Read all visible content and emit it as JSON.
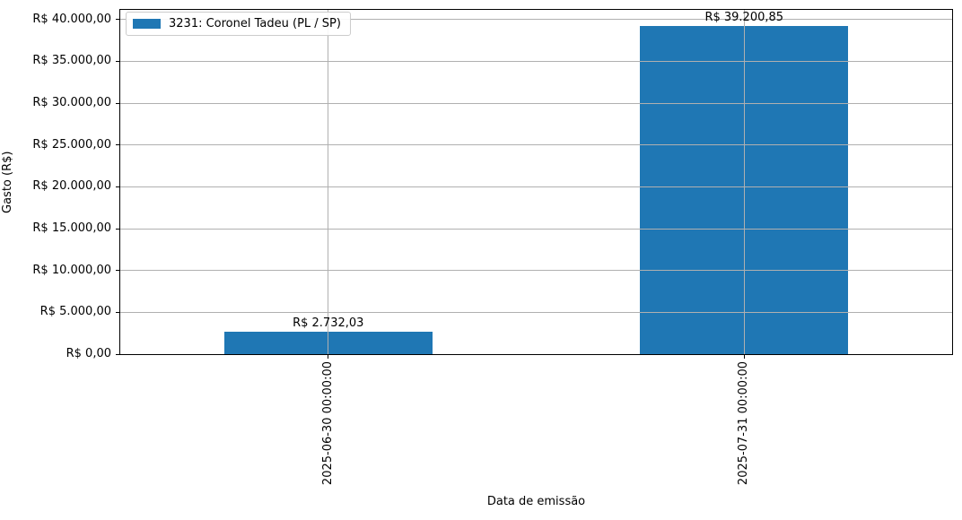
{
  "chart_data": {
    "type": "bar",
    "title": "",
    "xlabel": "Data de emissão",
    "ylabel": "Gasto (R$)",
    "categories": [
      "2025-06-30 00:00:00",
      "2025-07-31 00:00:00"
    ],
    "series": [
      {
        "name": "3231: Coronel Tadeu (PL / SP)",
        "values": [
          2732.03,
          39200.85
        ],
        "value_labels": [
          "R$ 2.732,03",
          "R$ 39.200,85"
        ],
        "color": "#1f77b4"
      }
    ],
    "legend": {
      "entries": [
        "3231: Coronel Tadeu (PL / SP)"
      ],
      "position": "upper left"
    },
    "ylim": [
      0,
      41161
    ],
    "yticks": [
      0,
      5000,
      10000,
      15000,
      20000,
      25000,
      30000,
      35000,
      40000
    ],
    "ytick_labels": [
      "R$ 0,00",
      "R$ 5.000,00",
      "R$ 10.000,00",
      "R$ 15.000,00",
      "R$ 20.000,00",
      "R$ 25.000,00",
      "R$ 30.000,00",
      "R$ 35.000,00",
      "R$ 40.000,00"
    ],
    "grid": true,
    "grid_color": "#b0b0b0",
    "axis_color": "#000000",
    "background": "#ffffff"
  }
}
